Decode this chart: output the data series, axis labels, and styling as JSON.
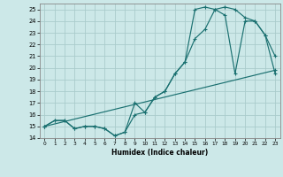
{
  "xlabel": "Humidex (Indice chaleur)",
  "bg_color": "#cce8e8",
  "grid_color": "#aacccc",
  "line_color": "#1a7070",
  "xlim": [
    -0.5,
    23.5
  ],
  "ylim": [
    14,
    25.5
  ],
  "xticks": [
    0,
    1,
    2,
    3,
    4,
    5,
    6,
    7,
    8,
    9,
    10,
    11,
    12,
    13,
    14,
    15,
    16,
    17,
    18,
    19,
    20,
    21,
    22,
    23
  ],
  "yticks": [
    14,
    15,
    16,
    17,
    18,
    19,
    20,
    21,
    22,
    23,
    24,
    25
  ],
  "line1_x": [
    0,
    1,
    2,
    3,
    4,
    5,
    6,
    7,
    8,
    9,
    10,
    11,
    12,
    13,
    14,
    15,
    16,
    17,
    18,
    19,
    20,
    21,
    22,
    23
  ],
  "line1_y": [
    15,
    15.5,
    15.5,
    14.8,
    15.0,
    15.0,
    14.8,
    14.2,
    14.5,
    16.0,
    16.2,
    17.5,
    18.0,
    19.5,
    20.5,
    22.5,
    23.3,
    25.0,
    25.2,
    25.0,
    24.3,
    24.0,
    22.8,
    21.0
  ],
  "line2_x": [
    0,
    1,
    2,
    3,
    4,
    5,
    6,
    7,
    8,
    9,
    10,
    11,
    12,
    13,
    14,
    15,
    16,
    17,
    18,
    19,
    20,
    21,
    22,
    23
  ],
  "line2_y": [
    15,
    15.5,
    15.5,
    14.8,
    15.0,
    15.0,
    14.8,
    14.2,
    14.5,
    17.0,
    16.2,
    17.5,
    18.0,
    19.5,
    20.5,
    25.0,
    25.2,
    25.0,
    24.5,
    19.5,
    24.0,
    24.0,
    22.8,
    19.5
  ],
  "line3_x": [
    0,
    23
  ],
  "line3_y": [
    15,
    19.8
  ]
}
